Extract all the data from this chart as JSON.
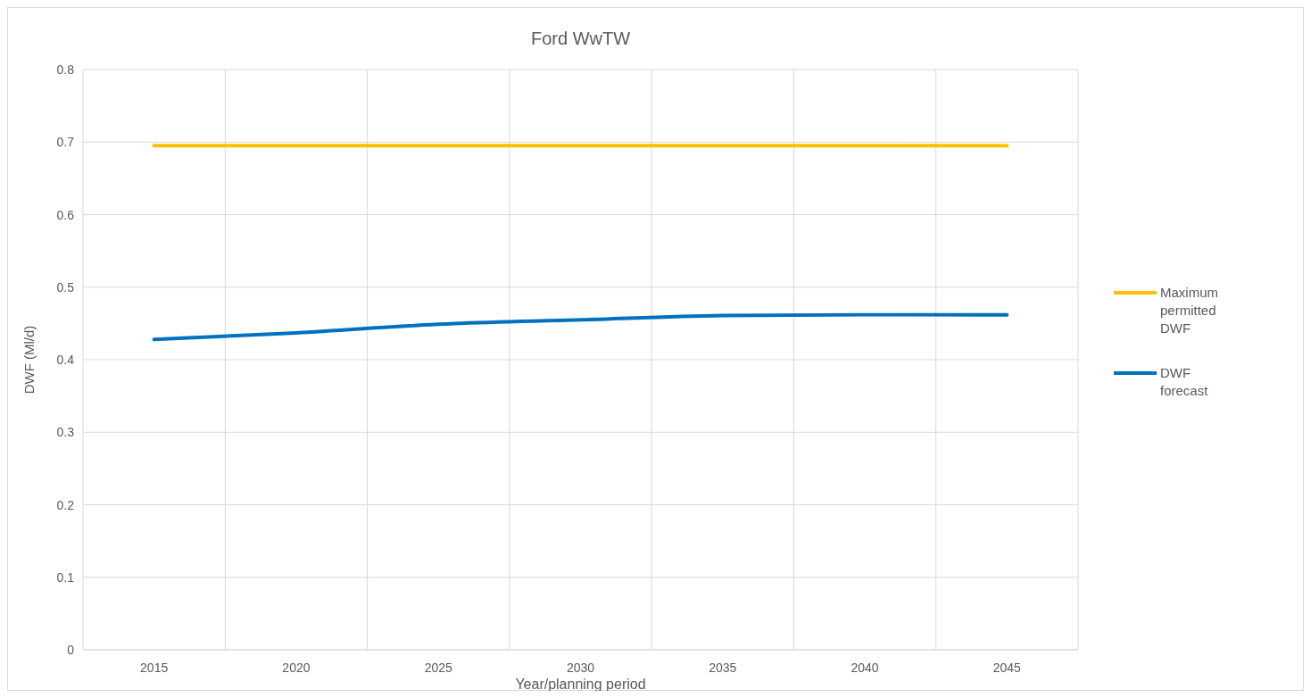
{
  "chart_data": {
    "type": "line",
    "title": "Ford WwTW",
    "xlabel": "Year/planning period",
    "ylabel": "DWF (Ml/d)",
    "categories": [
      "2015",
      "2020",
      "2025",
      "2030",
      "2035",
      "2040",
      "2045"
    ],
    "series": [
      {
        "name": "Maximum permitted DWF",
        "color": "#ffc000",
        "values": [
          0.695,
          0.695,
          0.695,
          0.695,
          0.695,
          0.695,
          0.695
        ]
      },
      {
        "name": "DWF forecast",
        "color": "#0070c0",
        "values": [
          0.428,
          0.437,
          0.449,
          0.455,
          0.461,
          0.462,
          0.462
        ]
      }
    ],
    "ylim": [
      0,
      0.8
    ],
    "yticks": [
      0,
      0.1,
      0.2,
      0.3,
      0.4,
      0.5,
      0.6,
      0.7,
      0.8
    ],
    "grid": true,
    "legend": "right",
    "marker": "none",
    "line_style": "solid"
  }
}
